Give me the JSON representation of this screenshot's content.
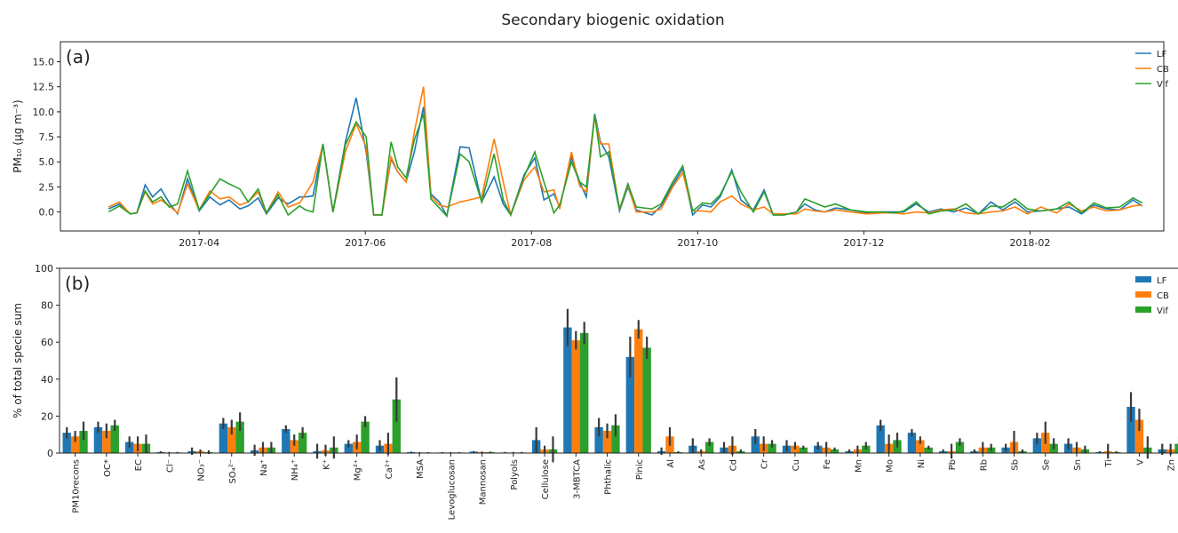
{
  "chart_data": [
    {
      "type": "line",
      "title": "Secondary biogenic oxidation",
      "panel": "(a)",
      "ylabel": "PM₁₀ (µg m⁻³)",
      "legend": "upper right",
      "xlim": [
        1.33,
        14.61
      ],
      "ylim": [
        -1.9,
        17.0
      ],
      "xticks": [
        {
          "value": 3,
          "label": "2017-04"
        },
        {
          "value": 5,
          "label": "2017-06"
        },
        {
          "value": 7,
          "label": "2017-08"
        },
        {
          "value": 9,
          "label": "2017-10"
        },
        {
          "value": 11,
          "label": "2017-12"
        },
        {
          "value": 13,
          "label": "2018-02"
        }
      ],
      "yticks": [
        {
          "value": 0,
          "label": "0.0"
        },
        2.5,
        {
          "value": 5,
          "label": "5.0"
        },
        7.5,
        {
          "value": 10,
          "label": "10.0"
        },
        12.5,
        {
          "value": 15,
          "label": "15.0"
        }
      ],
      "x": [
        1.91,
        2.04,
        2.17,
        2.25,
        2.35,
        2.44,
        2.54,
        2.64,
        2.74,
        2.86,
        3.0,
        3.13,
        3.25,
        3.36,
        3.49,
        3.59,
        3.71,
        3.81,
        3.95,
        4.07,
        4.21,
        4.28,
        4.37,
        4.49,
        4.61,
        4.76,
        4.89,
        5.01,
        5.1,
        5.2,
        5.31,
        5.39,
        5.49,
        5.59,
        5.7,
        5.79,
        5.89,
        5.98,
        6.14,
        6.25,
        6.4,
        6.55,
        6.66,
        6.75,
        6.91,
        7.04,
        7.15,
        7.27,
        7.34,
        7.48,
        7.58,
        7.66,
        7.76,
        7.83,
        7.93,
        8.06,
        8.16,
        8.26,
        8.45,
        8.56,
        8.7,
        8.82,
        8.94,
        9.06,
        9.16,
        9.27,
        9.41,
        9.52,
        9.67,
        9.8,
        9.91,
        10.04,
        10.19,
        10.29,
        10.41,
        10.53,
        10.66,
        10.84,
        11.03,
        11.22,
        11.37,
        11.48,
        11.63,
        11.78,
        11.93,
        12.08,
        12.23,
        12.38,
        12.53,
        12.67,
        12.82,
        12.97,
        13.13,
        13.32,
        13.47,
        13.62,
        13.77,
        13.92,
        14.08,
        14.24,
        14.35
      ],
      "series": [
        {
          "name": "LF",
          "color": "#1f77b4",
          "values": [
            0.3,
            0.8,
            -0.2,
            -0.1,
            2.7,
            1.5,
            2.3,
            0.9,
            -0.2,
            3.3,
            0.1,
            1.5,
            0.7,
            1.2,
            0.3,
            0.6,
            1.4,
            -0.2,
            1.4,
            0.8,
            1.5,
            1.5,
            1.6,
            6.8,
            0.0,
            7.0,
            11.4,
            6.0,
            -0.3,
            -0.3,
            5.3,
            4.0,
            3.0,
            6.0,
            10.5,
            1.8,
            1.0,
            -0.4,
            6.5,
            6.4,
            1.0,
            3.5,
            0.8,
            -0.3,
            3.7,
            5.4,
            1.2,
            1.8,
            0.5,
            5.5,
            3.0,
            1.5,
            9.8,
            7.0,
            5.5,
            0.1,
            2.5,
            0.2,
            -0.3,
            0.6,
            2.7,
            4.3,
            -0.3,
            0.7,
            0.5,
            1.5,
            4.2,
            1.2,
            0.2,
            2.2,
            -0.3,
            -0.3,
            0.0,
            0.8,
            0.2,
            0.0,
            0.4,
            0.2,
            -0.1,
            0.0,
            0.0,
            0.0,
            0.8,
            0.0,
            0.3,
            0.0,
            0.4,
            -0.2,
            1.0,
            0.2,
            1.0,
            0.0,
            0.1,
            0.3,
            0.5,
            -0.2,
            0.7,
            0.3,
            0.2,
            1.2,
            0.6
          ]
        },
        {
          "name": "CB",
          "color": "#ff7f0e",
          "values": [
            0.5,
            1.0,
            -0.2,
            -0.1,
            2.0,
            0.8,
            1.2,
            0.6,
            -0.1,
            2.8,
            0.2,
            2.1,
            1.3,
            1.5,
            0.7,
            1.0,
            2.0,
            -0.1,
            2.0,
            0.5,
            0.9,
            1.8,
            3.0,
            6.7,
            0.0,
            6.0,
            8.8,
            6.5,
            -0.3,
            -0.3,
            5.5,
            4.0,
            3.0,
            8.0,
            12.5,
            1.6,
            0.7,
            0.5,
            1.0,
            1.2,
            1.5,
            7.3,
            3.0,
            -0.3,
            3.2,
            4.5,
            2.0,
            2.2,
            0.3,
            6.0,
            2.6,
            2.0,
            9.5,
            6.8,
            6.8,
            0.2,
            2.7,
            0.0,
            0.0,
            0.3,
            2.5,
            3.9,
            0.1,
            0.1,
            0.0,
            1.0,
            1.6,
            0.8,
            0.2,
            0.5,
            -0.2,
            -0.2,
            -0.2,
            0.3,
            0.1,
            0.0,
            0.2,
            0.0,
            -0.2,
            -0.1,
            -0.1,
            -0.2,
            0.0,
            -0.1,
            0.2,
            0.3,
            -0.1,
            -0.2,
            0.0,
            0.1,
            0.5,
            -0.2,
            0.5,
            -0.1,
            0.8,
            0.1,
            0.5,
            0.1,
            0.2,
            0.6,
            0.7
          ]
        },
        {
          "name": "Vif",
          "color": "#2ca02c",
          "values": [
            0.0,
            0.6,
            -0.2,
            -0.1,
            2.1,
            1.0,
            1.5,
            0.5,
            0.8,
            4.1,
            0.2,
            1.8,
            3.3,
            2.8,
            2.3,
            1.0,
            2.3,
            -0.1,
            1.7,
            -0.3,
            0.6,
            0.2,
            0.0,
            6.8,
            0.0,
            6.7,
            9.0,
            7.5,
            -0.3,
            -0.3,
            7.0,
            4.5,
            3.4,
            7.2,
            9.8,
            1.3,
            0.4,
            -0.4,
            5.8,
            5.0,
            1.0,
            5.8,
            1.2,
            -0.3,
            3.5,
            6.0,
            3.0,
            -0.1,
            0.7,
            5.0,
            3.0,
            2.5,
            9.7,
            5.5,
            6.0,
            0.3,
            2.8,
            0.5,
            0.3,
            0.8,
            3.0,
            4.6,
            0.1,
            0.9,
            0.8,
            1.7,
            4.0,
            2.0,
            0.0,
            2.0,
            -0.3,
            -0.3,
            0.0,
            1.3,
            0.9,
            0.5,
            0.8,
            0.2,
            0.0,
            0.0,
            -0.1,
            0.1,
            1.0,
            -0.2,
            0.1,
            0.2,
            0.8,
            -0.2,
            0.6,
            0.5,
            1.3,
            0.3,
            0.1,
            0.3,
            1.0,
            -0.1,
            0.9,
            0.4,
            0.5,
            1.4,
            0.9
          ]
        }
      ]
    },
    {
      "type": "bar",
      "panel": "(b)",
      "ylabel": "% of total specie sum",
      "legend": "upper right",
      "ylim": [
        0,
        100
      ],
      "yticks": [
        0,
        20,
        40,
        60,
        80,
        100
      ],
      "categories": [
        "PM10recons",
        "OC*",
        "EC",
        "Cl⁻",
        "NO₃⁻",
        "SO₄²⁻",
        "Na⁺",
        "NH₄⁺",
        "K⁺",
        "Mg²⁺",
        "Ca²⁺",
        "MSA",
        "Levoglucosan",
        "Mannosan",
        "Polyols",
        "Cellulose",
        "3-MBTCA",
        "Phthalic",
        "Pinic",
        "Al",
        "As",
        "Cd",
        "Cr",
        "Cu",
        "Fe",
        "Mn",
        "Mo",
        "Ni",
        "Pb",
        "Rb",
        "Sb",
        "Se",
        "Sn",
        "Ti",
        "V",
        "Zn"
      ],
      "series": [
        {
          "name": "LF",
          "color": "#1f77b4",
          "values": [
            11,
            14,
            6,
            0.5,
            1,
            16,
            1.5,
            13,
            1,
            5,
            4,
            0.5,
            0.3,
            0.8,
            0.3,
            7,
            68,
            14,
            52,
            1,
            4,
            3,
            9,
            4,
            4,
            1,
            15,
            11,
            1,
            1,
            3,
            8,
            5,
            0.5,
            25,
            2
          ],
          "errors": [
            3,
            3,
            3,
            0.5,
            2,
            3,
            3,
            2,
            4,
            2,
            3,
            0.3,
            0.2,
            0.3,
            0.3,
            7,
            10,
            5,
            11,
            2,
            4,
            3,
            4,
            3,
            2,
            1,
            3,
            2,
            1,
            1,
            2,
            3,
            3,
            0.5,
            8,
            3
          ]
        },
        {
          "name": "CB",
          "color": "#ff7f0e",
          "values": [
            9,
            12,
            5,
            0.3,
            1,
            14,
            3,
            7,
            1.5,
            6,
            5,
            0.3,
            0.3,
            0.5,
            0.3,
            2,
            61,
            12,
            67,
            9,
            1,
            4,
            5,
            4,
            3,
            2,
            5,
            7,
            1,
            3,
            6,
            11,
            3,
            1,
            18,
            2
          ],
          "errors": [
            3,
            4,
            4,
            0.3,
            1,
            4,
            3,
            3,
            3,
            4,
            6,
            0.2,
            0.2,
            0.3,
            0.3,
            2,
            5,
            4,
            5,
            5,
            1,
            5,
            4,
            2,
            3,
            2,
            5,
            2,
            4,
            3,
            6,
            6,
            3,
            4,
            6,
            3
          ]
        },
        {
          "name": "Vif",
          "color": "#2ca02c",
          "values": [
            12,
            15,
            5,
            0.3,
            0.5,
            17,
            3,
            11,
            3,
            17,
            29,
            0.3,
            0.3,
            0.5,
            0.3,
            2,
            65,
            15,
            57,
            0.5,
            6,
            1,
            5,
            3,
            2,
            4,
            7,
            3,
            6,
            3,
            1,
            5,
            2,
            0.5,
            3,
            5
          ],
          "errors": [
            5,
            3,
            5,
            0.3,
            1,
            5,
            3,
            3,
            6,
            3,
            12,
            0.2,
            0.2,
            0.3,
            0.3,
            7,
            6,
            6,
            6,
            0.5,
            2,
            1,
            2,
            1,
            1,
            2,
            4,
            1,
            2,
            2,
            1,
            3,
            2,
            0.5,
            6,
            4
          ]
        }
      ]
    }
  ]
}
